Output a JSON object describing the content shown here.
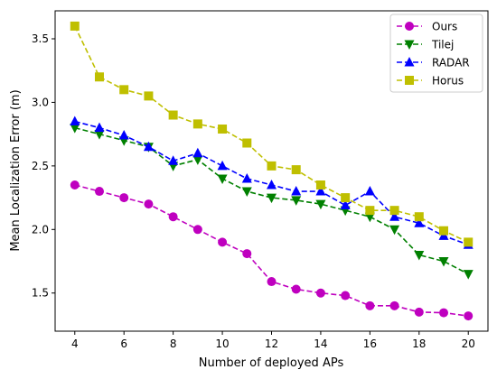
{
  "chart_data": {
    "type": "line",
    "title": "",
    "xlabel": "Number of deployed APs",
    "ylabel": "Mean Localization Error (m)",
    "x": [
      4,
      5,
      6,
      7,
      8,
      9,
      10,
      11,
      12,
      13,
      14,
      15,
      16,
      17,
      18,
      19,
      20
    ],
    "xlim": [
      3.2,
      20.8
    ],
    "ylim": [
      1.2,
      3.72
    ],
    "xticks": [
      4,
      6,
      8,
      10,
      12,
      14,
      16,
      18,
      20
    ],
    "xtick_labels": [
      "4",
      "6",
      "8",
      "10",
      "12",
      "14",
      "16",
      "18",
      "20"
    ],
    "yticks": [
      1.5,
      2.0,
      2.5,
      3.0,
      3.5
    ],
    "ytick_labels": [
      "1.5",
      "2.0",
      "2.5",
      "3.0",
      "3.5"
    ],
    "grid": false,
    "legend_position": "top-right",
    "series": [
      {
        "name": "Ours",
        "color": "#bf00bf",
        "marker": "circle",
        "linestyle": "dashed",
        "values": [
          2.35,
          2.3,
          2.25,
          2.2,
          2.1,
          2.0,
          1.9,
          1.81,
          1.59,
          1.53,
          1.5,
          1.48,
          1.4,
          1.4,
          1.35,
          1.345,
          1.32
        ]
      },
      {
        "name": "Tilej",
        "color": "#008000",
        "marker": "triangle-down",
        "linestyle": "dashed",
        "values": [
          2.8,
          2.75,
          2.7,
          2.65,
          2.5,
          2.55,
          2.4,
          2.3,
          2.25,
          2.23,
          2.2,
          2.15,
          2.1,
          2.0,
          1.8,
          1.75,
          1.65
        ]
      },
      {
        "name": "RADAR",
        "color": "#0000ff",
        "marker": "triangle-up",
        "linestyle": "dashed",
        "values": [
          2.85,
          2.8,
          2.74,
          2.65,
          2.54,
          2.6,
          2.5,
          2.4,
          2.35,
          2.3,
          2.3,
          2.19,
          2.3,
          2.1,
          2.05,
          1.95,
          1.88
        ]
      },
      {
        "name": "Horus",
        "color": "#bfbf00",
        "marker": "square",
        "linestyle": "dashed",
        "values": [
          3.6,
          3.2,
          3.1,
          3.05,
          2.9,
          2.83,
          2.79,
          2.68,
          2.5,
          2.47,
          2.35,
          2.25,
          2.15,
          2.15,
          2.1,
          1.99,
          1.9
        ]
      }
    ]
  }
}
